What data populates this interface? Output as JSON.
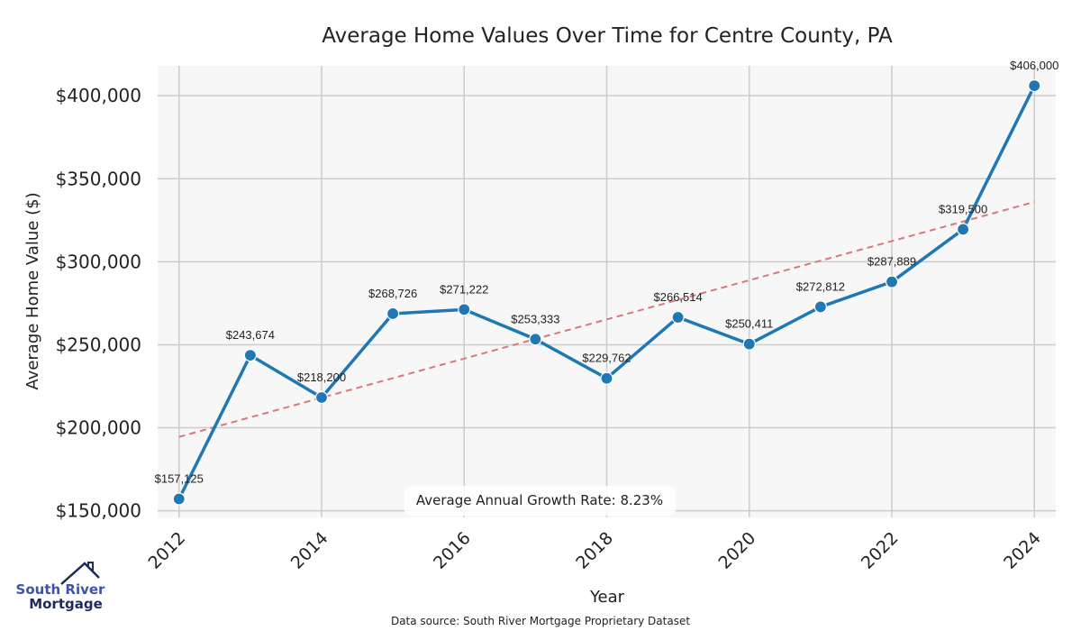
{
  "chart_data": {
    "type": "line",
    "title": "Average Home Values Over Time for Centre County, PA",
    "xlabel": "Year",
    "ylabel": "Average Home Value ($)",
    "x": [
      2012,
      2013,
      2014,
      2015,
      2016,
      2017,
      2018,
      2019,
      2020,
      2021,
      2022,
      2023,
      2024
    ],
    "series": [
      {
        "name": "Average Home Value",
        "color": "#1f77b4",
        "values": [
          157125,
          243674,
          218200,
          268726,
          271222,
          253333,
          229762,
          266514,
          250411,
          272812,
          287889,
          319500,
          406000
        ],
        "labels": [
          "$157,125",
          "$243,674",
          "$218,200",
          "$268,726",
          "$271,222",
          "$253,333",
          "$229,762",
          "$266,514",
          "$250,411",
          "$272,812",
          "$287,889",
          "$319,500",
          "$406,000"
        ]
      }
    ],
    "trendline": {
      "name": "Trend",
      "color": "#d9787a",
      "style": "dashed",
      "start": [
        2012,
        194500
      ],
      "end": [
        2024,
        336000
      ]
    },
    "xticks": [
      2012,
      2014,
      2016,
      2018,
      2020,
      2022,
      2024
    ],
    "xtick_labels": [
      "2012",
      "2014",
      "2016",
      "2018",
      "2020",
      "2022",
      "2024"
    ],
    "yticks": [
      150000,
      200000,
      250000,
      300000,
      350000,
      400000
    ],
    "ytick_labels": [
      "$150,000",
      "$200,000",
      "$250,000",
      "$300,000",
      "$350,000",
      "$400,000"
    ],
    "xlim": [
      2011.7,
      2024.3
    ],
    "ylim": [
      146000,
      418000
    ],
    "grid": true,
    "annotation": "Average Annual Growth Rate: 8.23%",
    "source": "Data source: South River Mortgage Proprietary Dataset",
    "background": "#f7f7f7",
    "grid_color": "#cccccc"
  },
  "logo": {
    "line1": "South River",
    "line2": "Mortgage",
    "color": "#1f2a5c"
  }
}
